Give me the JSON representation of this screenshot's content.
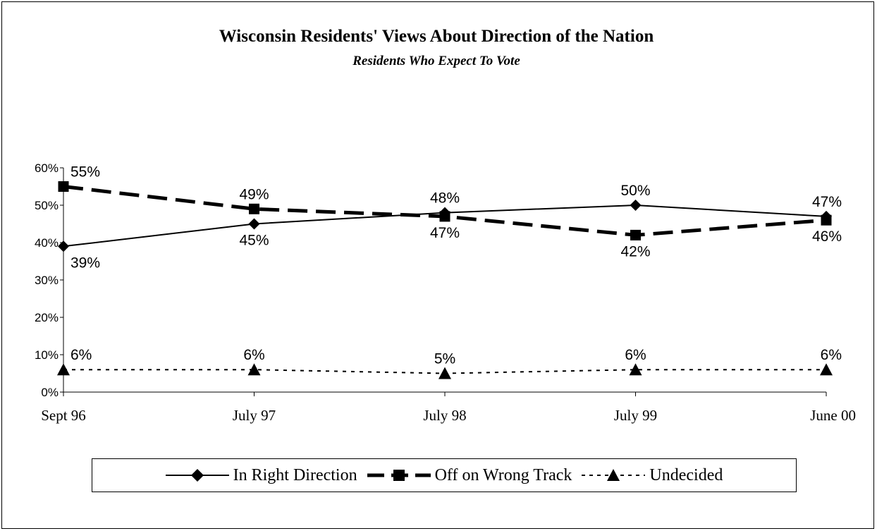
{
  "chart_data": {
    "type": "line",
    "title": "Wisconsin Residents' Views About Direction of the Nation",
    "subtitle": "Residents Who Expect To Vote",
    "categories": [
      "Sept 96",
      "July 97",
      "July 98",
      "July 99",
      "June 00"
    ],
    "y_ticks": [
      "0%",
      "10%",
      "20%",
      "30%",
      "40%",
      "50%",
      "60%"
    ],
    "ylim": [
      0,
      60
    ],
    "xlabel": "",
    "ylabel": "",
    "grid": false,
    "legend_position": "bottom",
    "series": [
      {
        "name": "In Right Direction",
        "values": [
          39,
          45,
          48,
          50,
          47
        ],
        "labels": [
          "39%",
          "45%",
          "48%",
          "50%",
          "47%"
        ],
        "marker": "diamond",
        "line_style": "solid",
        "color": "#000000"
      },
      {
        "name": "Off on Wrong Track",
        "values": [
          55,
          49,
          47,
          42,
          46
        ],
        "labels": [
          "55%",
          "49%",
          "47%",
          "42%",
          "46%"
        ],
        "marker": "square",
        "line_style": "dashed",
        "color": "#000000"
      },
      {
        "name": "Undecided",
        "values": [
          6,
          6,
          5,
          6,
          6
        ],
        "labels": [
          "6%",
          "6%",
          "5%",
          "6%",
          "6%"
        ],
        "marker": "triangle",
        "line_style": "dotted",
        "color": "#000000"
      }
    ]
  }
}
